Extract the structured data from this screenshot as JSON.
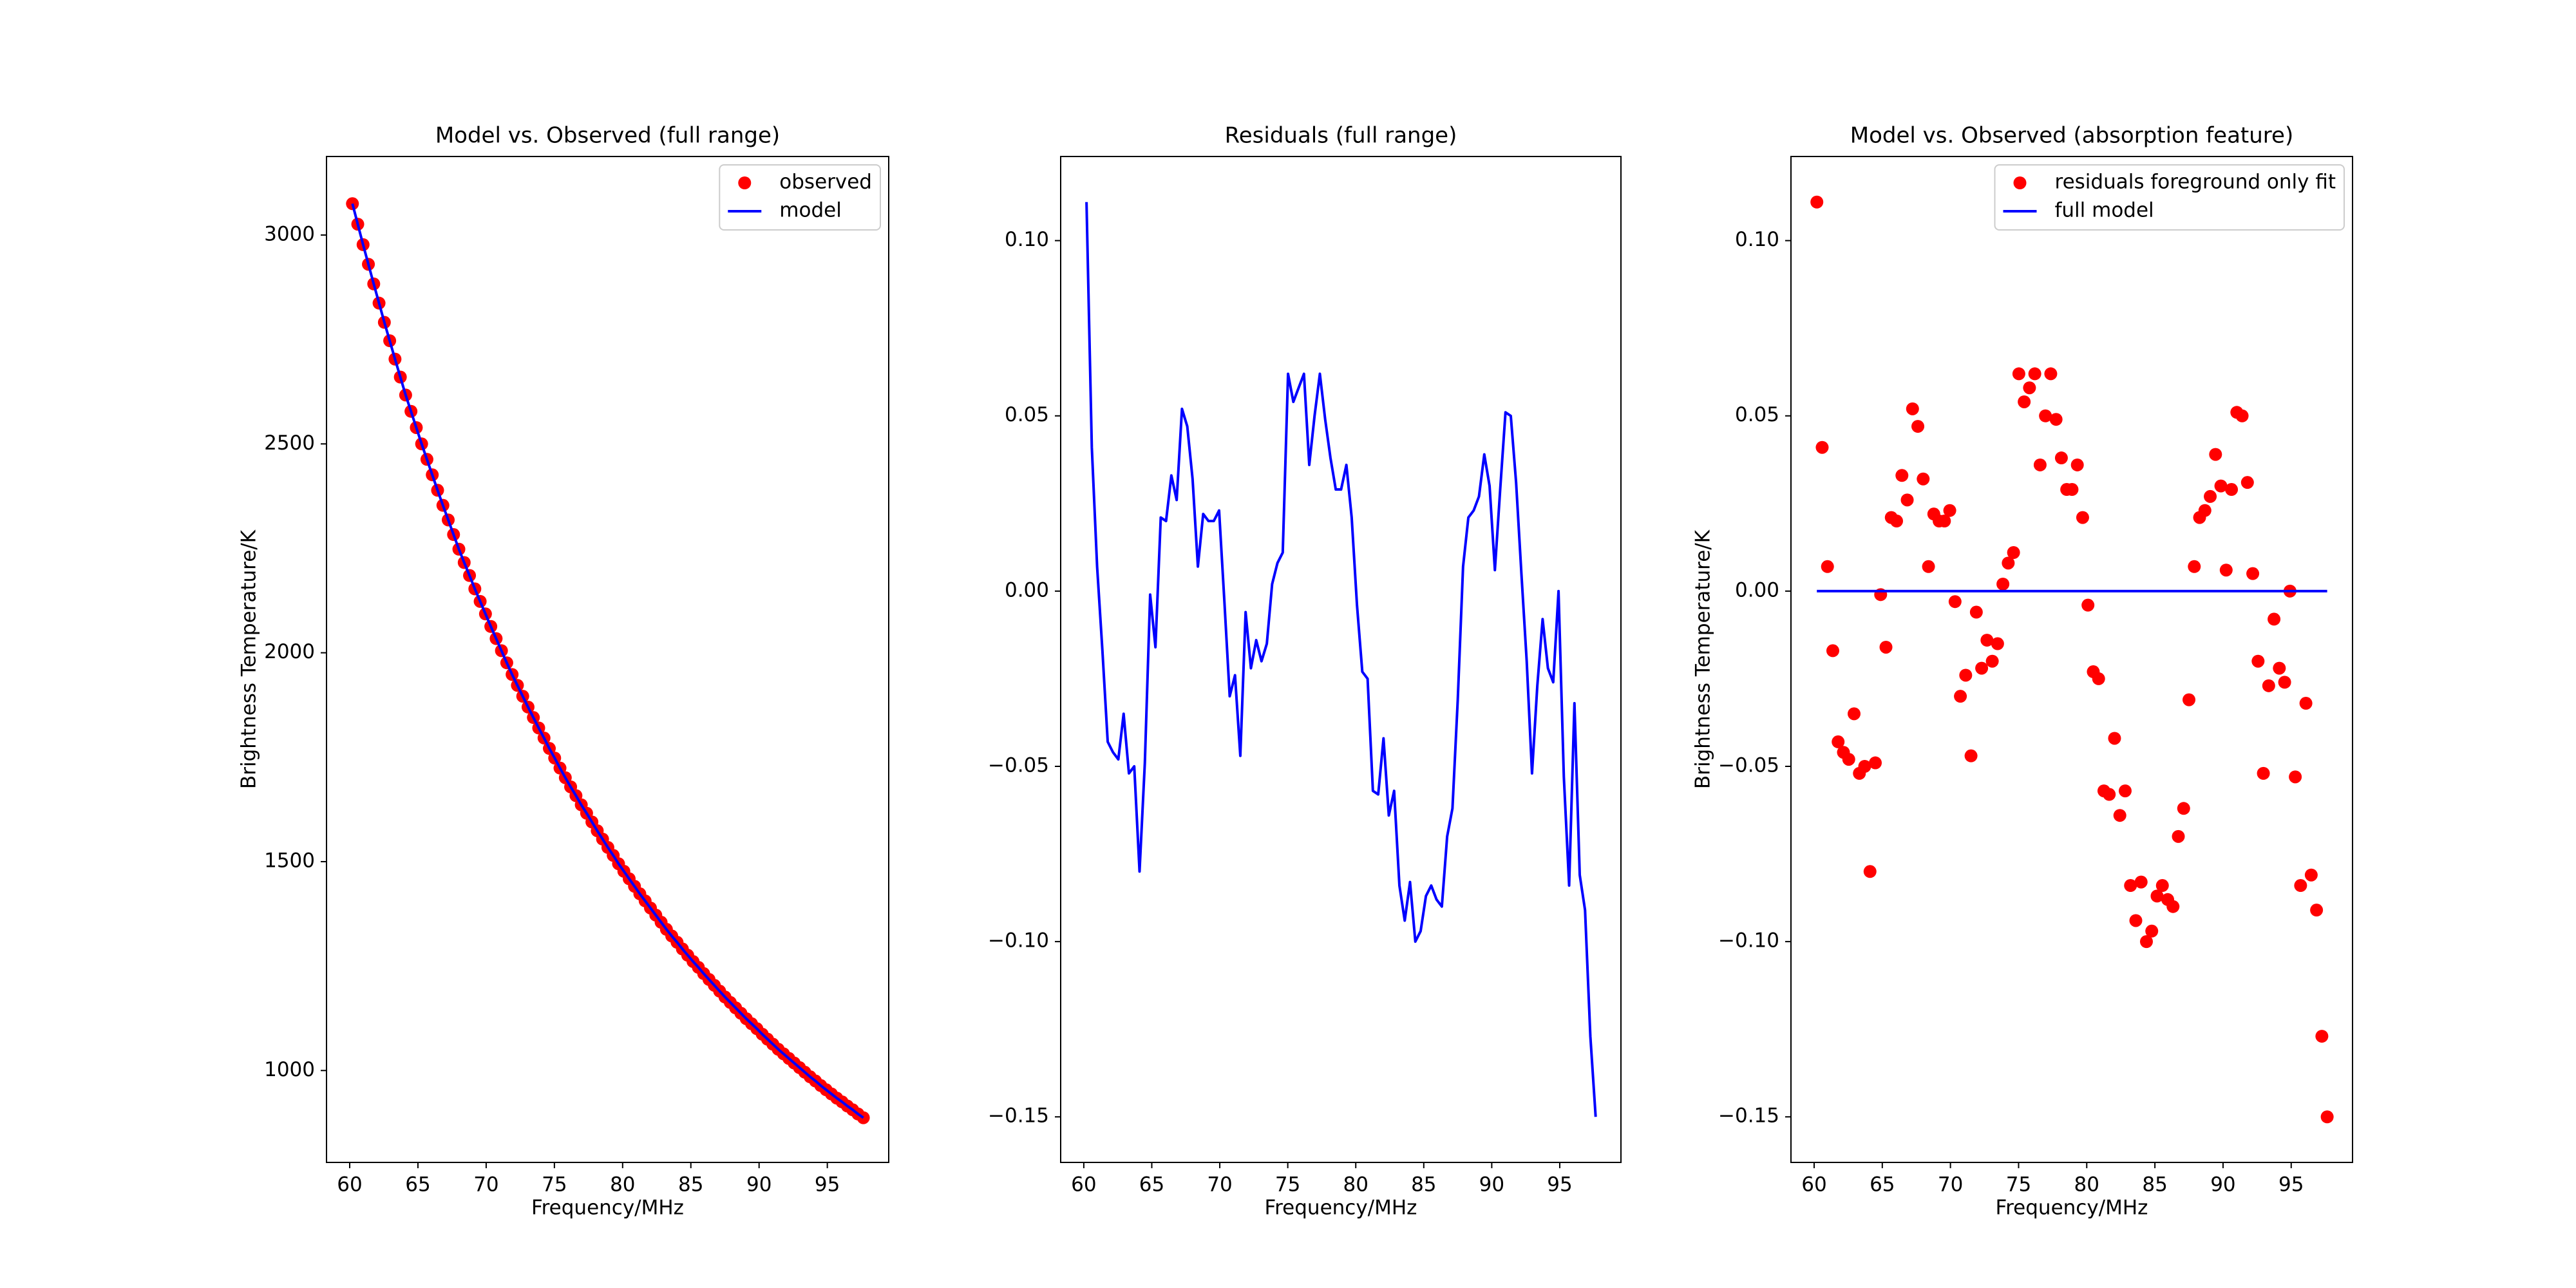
{
  "chart_data": [
    {
      "type": "line",
      "title": "Model vs. Observed (full range)",
      "xlabel": "Frequency/MHz",
      "ylabel": "Brightness Temperature/K",
      "xlim": [
        58.3,
        99.5
      ],
      "ylim": [
        780,
        3188
      ],
      "xticks": [
        60,
        65,
        70,
        75,
        80,
        85,
        90,
        95
      ],
      "yticks": [
        1000,
        1500,
        2000,
        2500,
        3000
      ],
      "legend": "upper right",
      "x": [
        60.2,
        60.59,
        60.98,
        61.37,
        61.76,
        62.15,
        62.54,
        62.93,
        63.32,
        63.71,
        64.1,
        64.49,
        64.88,
        65.27,
        65.66,
        66.05,
        66.44,
        66.83,
        67.22,
        67.61,
        68.0,
        68.39,
        68.78,
        69.17,
        69.56,
        69.95,
        70.34,
        70.73,
        71.12,
        71.51,
        71.9,
        72.29,
        72.68,
        73.07,
        73.46,
        73.85,
        74.24,
        74.63,
        75.02,
        75.41,
        75.8,
        76.19,
        76.58,
        76.97,
        77.36,
        77.75,
        78.14,
        78.53,
        78.92,
        79.31,
        79.7,
        80.09,
        80.48,
        80.87,
        81.26,
        81.65,
        82.04,
        82.43,
        82.82,
        83.21,
        83.6,
        83.99,
        84.38,
        84.77,
        85.16,
        85.55,
        85.94,
        86.33,
        86.72,
        87.11,
        87.5,
        87.89,
        88.28,
        88.67,
        89.06,
        89.45,
        89.84,
        90.23,
        90.62,
        91.01,
        91.4,
        91.79,
        92.18,
        92.57,
        92.96,
        93.35,
        93.74,
        94.13,
        94.52,
        94.91,
        95.3,
        95.69,
        96.08,
        96.47,
        96.86,
        97.25,
        97.64
      ],
      "series": [
        {
          "name": "observed",
          "color": "#ff0000",
          "style": "marker",
          "values": [
            3075,
            3026,
            2977,
            2930,
            2883,
            2837,
            2791,
            2747,
            2703,
            2660,
            2617,
            2578,
            2539,
            2500,
            2463,
            2426,
            2389,
            2353,
            2318,
            2283,
            2248,
            2216,
            2185,
            2153,
            2123,
            2093,
            2063,
            2034,
            2005,
            1976,
            1948,
            1922,
            1896,
            1870,
            1845,
            1820,
            1796,
            1771,
            1748,
            1724,
            1701,
            1679,
            1658,
            1636,
            1616,
            1595,
            1574,
            1554,
            1534,
            1515,
            1495,
            1477,
            1459,
            1441,
            1423,
            1406,
            1389,
            1372,
            1355,
            1338,
            1322,
            1307,
            1291,
            1276,
            1261,
            1247,
            1232,
            1218,
            1204,
            1190,
            1176,
            1163,
            1150,
            1137,
            1124,
            1112,
            1100,
            1087,
            1075,
            1063,
            1051,
            1040,
            1029,
            1018,
            1007,
            996,
            985,
            975,
            964,
            954,
            944,
            934,
            925,
            915,
            906,
            896,
            887
          ]
        },
        {
          "name": "model",
          "color": "#0000ff",
          "style": "line",
          "values": [
            3075,
            3026,
            2977,
            2930,
            2883,
            2837,
            2791,
            2747,
            2703,
            2660,
            2617,
            2578,
            2539,
            2500,
            2463,
            2426,
            2389,
            2353,
            2318,
            2283,
            2248,
            2216,
            2185,
            2153,
            2123,
            2093,
            2063,
            2034,
            2005,
            1976,
            1948,
            1922,
            1896,
            1870,
            1845,
            1820,
            1796,
            1771,
            1748,
            1724,
            1701,
            1679,
            1658,
            1636,
            1616,
            1595,
            1574,
            1554,
            1534,
            1515,
            1495,
            1477,
            1459,
            1441,
            1423,
            1406,
            1389,
            1372,
            1355,
            1338,
            1322,
            1307,
            1291,
            1276,
            1261,
            1247,
            1232,
            1218,
            1204,
            1190,
            1176,
            1163,
            1150,
            1137,
            1124,
            1112,
            1100,
            1087,
            1075,
            1063,
            1051,
            1040,
            1029,
            1018,
            1007,
            996,
            985,
            975,
            964,
            954,
            944,
            934,
            925,
            915,
            906,
            896,
            887
          ]
        }
      ]
    },
    {
      "type": "line",
      "title": "Residuals (full range)",
      "xlabel": "Frequency/MHz",
      "xlim": [
        58.3,
        99.5
      ],
      "ylim": [
        -0.163,
        0.124
      ],
      "xticks": [
        60,
        65,
        70,
        75,
        80,
        85,
        90,
        95
      ],
      "yticks": [
        {
          "value": -0.15,
          "label": "−0.15"
        },
        {
          "value": -0.1,
          "label": "−0.10"
        },
        {
          "value": -0.05,
          "label": "−0.05"
        },
        {
          "value": 0,
          "label": "0.00"
        },
        {
          "value": 0.05,
          "label": "0.05"
        },
        {
          "value": 0.1,
          "label": "0.10"
        }
      ],
      "x": [
        60.2,
        60.59,
        60.98,
        61.37,
        61.76,
        62.15,
        62.54,
        62.93,
        63.32,
        63.71,
        64.1,
        64.49,
        64.88,
        65.27,
        65.66,
        66.05,
        66.44,
        66.83,
        67.22,
        67.61,
        68.0,
        68.39,
        68.78,
        69.17,
        69.56,
        69.95,
        70.34,
        70.73,
        71.12,
        71.51,
        71.9,
        72.29,
        72.68,
        73.07,
        73.46,
        73.85,
        74.24,
        74.63,
        75.02,
        75.41,
        75.8,
        76.19,
        76.58,
        76.97,
        77.36,
        77.75,
        78.14,
        78.53,
        78.92,
        79.31,
        79.7,
        80.09,
        80.48,
        80.87,
        81.26,
        81.65,
        82.04,
        82.43,
        82.82,
        83.21,
        83.6,
        83.99,
        84.38,
        84.77,
        85.16,
        85.55,
        85.94,
        86.33,
        86.72,
        87.11,
        87.5,
        87.89,
        88.28,
        88.67,
        89.06,
        89.45,
        89.84,
        90.23,
        90.62,
        91.01,
        91.4,
        91.79,
        92.18,
        92.57,
        92.96,
        93.35,
        93.74,
        94.13,
        94.52,
        94.91,
        95.3,
        95.69,
        96.08,
        96.47,
        96.86,
        97.25,
        97.64
      ],
      "color": "#0000ff",
      "style": "line",
      "values": [
        0.111,
        0.041,
        0.007,
        -0.017,
        -0.043,
        -0.046,
        -0.048,
        -0.035,
        -0.052,
        -0.05,
        -0.08,
        -0.049,
        -0.001,
        -0.016,
        0.021,
        0.02,
        0.033,
        0.026,
        0.052,
        0.047,
        0.032,
        0.007,
        0.022,
        0.02,
        0.02,
        0.023,
        -0.003,
        -0.03,
        -0.024,
        -0.047,
        -0.006,
        -0.022,
        -0.014,
        -0.02,
        -0.015,
        0.002,
        0.008,
        0.011,
        0.062,
        0.054,
        0.058,
        0.062,
        0.036,
        0.05,
        0.062,
        0.049,
        0.038,
        0.029,
        0.029,
        0.036,
        0.021,
        -0.004,
        -0.023,
        -0.025,
        -0.057,
        -0.058,
        -0.042,
        -0.064,
        -0.057,
        -0.084,
        -0.094,
        -0.083,
        -0.1,
        -0.097,
        -0.087,
        -0.084,
        -0.088,
        -0.09,
        -0.07,
        -0.062,
        -0.031,
        0.007,
        0.021,
        0.023,
        0.027,
        0.039,
        0.03,
        0.006,
        0.029,
        0.051,
        0.05,
        0.031,
        0.005,
        -0.02,
        -0.052,
        -0.027,
        -0.008,
        -0.022,
        -0.026,
        0.0,
        -0.053,
        -0.084,
        -0.032,
        -0.081,
        -0.091,
        -0.127,
        -0.15
      ]
    },
    {
      "type": "line",
      "title": "Model vs. Observed (absorption feature)",
      "xlabel": "Frequency/MHz",
      "ylabel": "Brightness Temperature/K",
      "xlim": [
        58.3,
        99.5
      ],
      "ylim": [
        -0.163,
        0.124
      ],
      "xticks": [
        60,
        65,
        70,
        75,
        80,
        85,
        90,
        95
      ],
      "yticks": [
        {
          "value": -0.15,
          "label": "−0.15"
        },
        {
          "value": -0.1,
          "label": "−0.10"
        },
        {
          "value": -0.05,
          "label": "−0.05"
        },
        {
          "value": 0,
          "label": "0.00"
        },
        {
          "value": 0.05,
          "label": "0.05"
        },
        {
          "value": 0.1,
          "label": "0.10"
        }
      ],
      "legend": "upper right",
      "x": [
        60.2,
        60.59,
        60.98,
        61.37,
        61.76,
        62.15,
        62.54,
        62.93,
        63.32,
        63.71,
        64.1,
        64.49,
        64.88,
        65.27,
        65.66,
        66.05,
        66.44,
        66.83,
        67.22,
        67.61,
        68.0,
        68.39,
        68.78,
        69.17,
        69.56,
        69.95,
        70.34,
        70.73,
        71.12,
        71.51,
        71.9,
        72.29,
        72.68,
        73.07,
        73.46,
        73.85,
        74.24,
        74.63,
        75.02,
        75.41,
        75.8,
        76.19,
        76.58,
        76.97,
        77.36,
        77.75,
        78.14,
        78.53,
        78.92,
        79.31,
        79.7,
        80.09,
        80.48,
        80.87,
        81.26,
        81.65,
        82.04,
        82.43,
        82.82,
        83.21,
        83.6,
        83.99,
        84.38,
        84.77,
        85.16,
        85.55,
        85.94,
        86.33,
        86.72,
        87.11,
        87.5,
        87.89,
        88.28,
        88.67,
        89.06,
        89.45,
        89.84,
        90.23,
        90.62,
        91.01,
        91.4,
        91.79,
        92.18,
        92.57,
        92.96,
        93.35,
        93.74,
        94.13,
        94.52,
        94.91,
        95.3,
        95.69,
        96.08,
        96.47,
        96.86,
        97.25,
        97.64
      ],
      "series": [
        {
          "name": "residuals foreground only fit",
          "color": "#ff0000",
          "style": "marker",
          "values": [
            0.111,
            0.041,
            0.007,
            -0.017,
            -0.043,
            -0.046,
            -0.048,
            -0.035,
            -0.052,
            -0.05,
            -0.08,
            -0.049,
            -0.001,
            -0.016,
            0.021,
            0.02,
            0.033,
            0.026,
            0.052,
            0.047,
            0.032,
            0.007,
            0.022,
            0.02,
            0.02,
            0.023,
            -0.003,
            -0.03,
            -0.024,
            -0.047,
            -0.006,
            -0.022,
            -0.014,
            -0.02,
            -0.015,
            0.002,
            0.008,
            0.011,
            0.062,
            0.054,
            0.058,
            0.062,
            0.036,
            0.05,
            0.062,
            0.049,
            0.038,
            0.029,
            0.029,
            0.036,
            0.021,
            -0.004,
            -0.023,
            -0.025,
            -0.057,
            -0.058,
            -0.042,
            -0.064,
            -0.057,
            -0.084,
            -0.094,
            -0.083,
            -0.1,
            -0.097,
            -0.087,
            -0.084,
            -0.088,
            -0.09,
            -0.07,
            -0.062,
            -0.031,
            0.007,
            0.021,
            0.023,
            0.027,
            0.039,
            0.03,
            0.006,
            0.029,
            0.051,
            0.05,
            0.031,
            0.005,
            -0.02,
            -0.052,
            -0.027,
            -0.008,
            -0.022,
            -0.026,
            0.0,
            -0.053,
            -0.084,
            -0.032,
            -0.081,
            -0.091,
            -0.127,
            -0.15
          ]
        },
        {
          "name": "full model",
          "color": "#0000ff",
          "style": "line",
          "values": [
            0,
            0,
            0,
            0,
            0,
            0,
            0,
            0,
            0,
            0,
            0,
            0,
            0,
            0,
            0,
            0,
            0,
            0,
            0,
            0,
            0,
            0,
            0,
            0,
            0,
            0,
            0,
            0,
            0,
            0,
            0,
            0,
            0,
            0,
            0,
            0,
            0,
            0,
            0,
            0,
            0,
            0,
            0,
            0,
            0,
            0,
            0,
            0,
            0,
            0,
            0,
            0,
            0,
            0,
            0,
            0,
            0,
            0,
            0,
            0,
            0,
            0,
            0,
            0,
            0,
            0,
            0,
            0,
            0,
            0,
            0,
            0,
            0,
            0,
            0,
            0,
            0,
            0,
            0,
            0,
            0,
            0,
            0,
            0,
            0,
            0,
            0,
            0,
            0,
            0,
            0,
            0,
            0,
            0,
            0,
            0,
            0
          ]
        }
      ]
    }
  ]
}
